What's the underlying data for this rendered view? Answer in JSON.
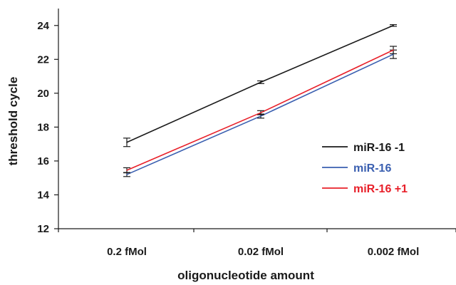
{
  "chart_data": {
    "type": "line",
    "categories": [
      "0.2 fMol",
      "0.02 fMol",
      "0.002 fMol"
    ],
    "xlabel": "oligonucleotide amount",
    "ylabel": "threshold cycle",
    "ylim": [
      12,
      25
    ],
    "yticks": [
      12,
      14,
      16,
      18,
      20,
      22,
      24
    ],
    "grid": false,
    "legend_position": "right",
    "series": [
      {
        "name": "miR-16 -1",
        "color": "#1a1a1a",
        "values": [
          17.1,
          20.65,
          24.0
        ],
        "errors": [
          0.25,
          0.08,
          0.05
        ]
      },
      {
        "name": "miR-16",
        "color": "#3a5fb0",
        "values": [
          15.2,
          18.65,
          22.3
        ],
        "errors": [
          0.12,
          0.12,
          0.25
        ]
      },
      {
        "name": "miR-16 +1",
        "color": "#e8202a",
        "values": [
          15.45,
          18.85,
          22.55
        ],
        "errors": [
          0.15,
          0.12,
          0.22
        ]
      }
    ]
  }
}
